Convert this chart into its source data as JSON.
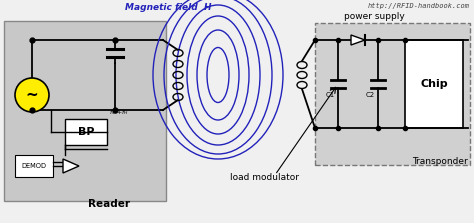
{
  "bg_color": "#f0f0f0",
  "white": "#ffffff",
  "black": "#000000",
  "blue": "#2222bb",
  "yellow": "#ffee00",
  "reader_bg": "#c8c8c8",
  "transponder_bg": "#d0d0d0",
  "url_text": "http://RFID-handbook.com",
  "magnetic_field_text": "Magnetic field  H",
  "reader_text": "Reader",
  "transponder_text": "Transponder",
  "power_supply_text": "power supply",
  "load_modulator_text": "load modulator",
  "bp_text": "BP",
  "demod_text": "DEMOD",
  "chip_text": "Chip",
  "c1_text": "C1",
  "c2_text": "C2"
}
